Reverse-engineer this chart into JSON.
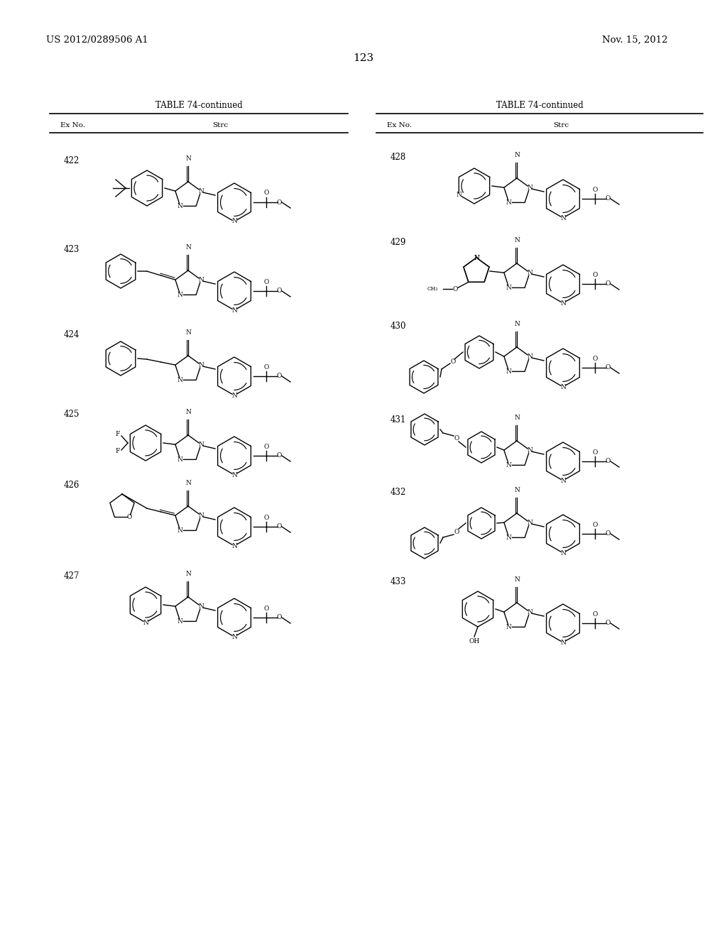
{
  "patent_number": "US 2012/0289506 A1",
  "patent_date": "Nov. 15, 2012",
  "page_number": "123",
  "table_title": "TABLE 74-continued",
  "col_ex": "Ex No.",
  "col_strc": "Strc",
  "left_examples": [
    422,
    423,
    424,
    425,
    426,
    427
  ],
  "right_examples": [
    428,
    429,
    430,
    431,
    432,
    433
  ],
  "bg_color": "#ffffff",
  "text_color": "#000000"
}
